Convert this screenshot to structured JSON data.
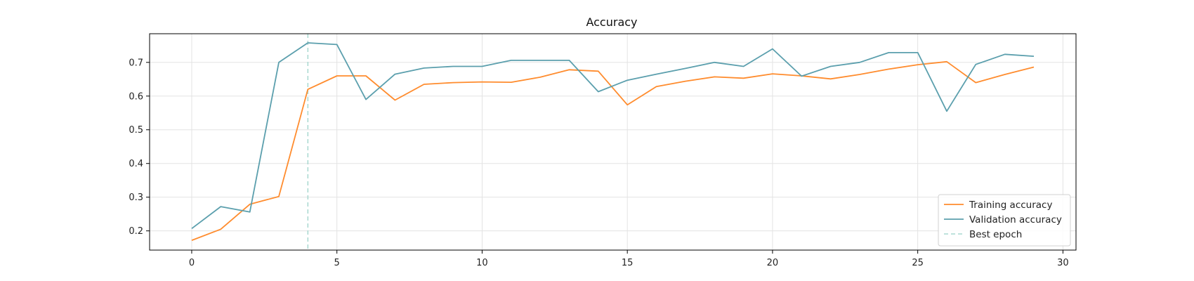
{
  "chart_data": {
    "type": "line",
    "title": "Accuracy",
    "xlabel": "",
    "ylabel": "",
    "xlim": [
      -1.45,
      30.45
    ],
    "ylim": [
      0.143,
      0.785
    ],
    "xticks": [
      0,
      5,
      10,
      15,
      20,
      25,
      30
    ],
    "yticks": [
      0.2,
      0.3,
      0.4,
      0.5,
      0.6,
      0.7
    ],
    "grid": true,
    "legend_position": "lower-right",
    "x": [
      0,
      1,
      2,
      3,
      4,
      5,
      6,
      7,
      8,
      9,
      10,
      11,
      12,
      13,
      14,
      15,
      16,
      17,
      18,
      19,
      20,
      21,
      22,
      23,
      24,
      25,
      26,
      27,
      28,
      29
    ],
    "series": [
      {
        "name": "Training accuracy",
        "color": "#ff8c2e",
        "values": [
          0.172,
          0.205,
          0.279,
          0.302,
          0.62,
          0.66,
          0.66,
          0.588,
          0.635,
          0.64,
          0.642,
          0.641,
          0.656,
          0.678,
          0.674,
          0.574,
          0.628,
          0.644,
          0.657,
          0.653,
          0.666,
          0.66,
          0.651,
          0.664,
          0.68,
          0.693,
          0.702,
          0.64,
          0.664,
          0.686
        ]
      },
      {
        "name": "Validation accuracy",
        "color": "#5b9fad",
        "values": [
          0.207,
          0.272,
          0.256,
          0.7,
          0.758,
          0.753,
          0.59,
          0.665,
          0.683,
          0.688,
          0.688,
          0.706,
          0.706,
          0.706,
          0.613,
          0.647,
          0.665,
          0.682,
          0.7,
          0.688,
          0.74,
          0.659,
          0.688,
          0.7,
          0.729,
          0.729,
          0.555,
          0.694,
          0.724,
          0.718
        ]
      }
    ],
    "markers": [
      {
        "name": "Best epoch",
        "x": 4,
        "color": "#a8d8d0",
        "style": "dashed"
      }
    ]
  }
}
